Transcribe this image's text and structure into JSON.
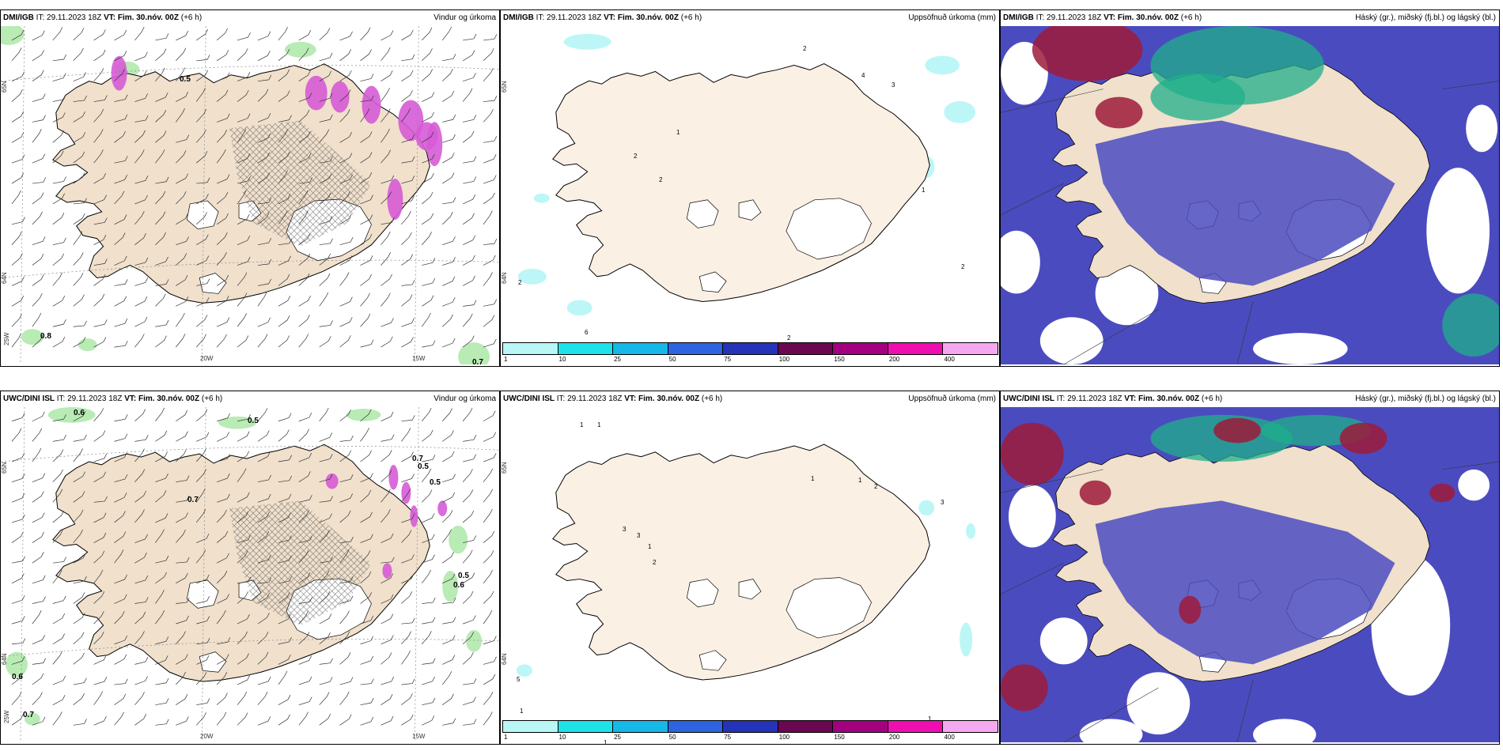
{
  "colors": {
    "land": "#f0e0cc",
    "land_light": "#fbf0e4",
    "cloud_high": "#9e1b3a",
    "cloud_mid": "#1faf8a",
    "cloud_low": "#4b4bc0",
    "precip_green": "#a8e6a3",
    "precip_purple": "#d65bd6"
  },
  "panels": [
    {
      "source": "DMI/IGB",
      "it_label": "IT:",
      "it": "29.11.2023 18Z",
      "vt_label": "VT:",
      "vt": "Fim. 30.nóv. 00Z",
      "lead": "(+6 h)",
      "title": "Vindur og úrkoma",
      "lat_labels": [
        "65N",
        "64N"
      ],
      "lon_labels": [
        "25W",
        "20W",
        "15W"
      ],
      "point_labels": [
        "0.5",
        "0.8",
        "0.7"
      ]
    },
    {
      "source": "DMI/IGB",
      "it_label": "IT:",
      "it": "29.11.2023 18Z",
      "vt_label": "VT:",
      "vt": "Fim. 30.nóv. 00Z",
      "lead": "(+6 h)",
      "title": "Uppsöfnuð úrkoma (mm)",
      "lat_labels": [
        "65N",
        "64N"
      ],
      "point_labels": [
        "2",
        "4",
        "3",
        "1",
        "2",
        "2",
        "1",
        "2",
        "2",
        "6",
        "2"
      ]
    },
    {
      "source": "DMI/IGB",
      "it_label": "IT:",
      "it": "29.11.2023 18Z",
      "vt_label": "VT:",
      "vt": "Fim. 30.nóv. 00Z",
      "lead": "(+6 h)",
      "title": "Háský (gr.), miðský (fj.bl.) og lágský (bl.)"
    },
    {
      "source": "UWC/DINI ISL",
      "it_label": "IT:",
      "it": "29.11.2023 18Z",
      "vt_label": "VT:",
      "vt": "Fim. 30.nóv. 00Z",
      "lead": "(+6 h)",
      "title": "Vindur og úrkoma",
      "lat_labels": [
        "65N",
        "64N"
      ],
      "lon_labels": [
        "25W",
        "20W",
        "15W"
      ],
      "point_labels": [
        "0.6",
        "0.5",
        "0.7",
        "0.7",
        "0.5",
        "0.5",
        "0.5",
        "0.6",
        "0.6",
        "0.7"
      ]
    },
    {
      "source": "UWC/DINI ISL",
      "it_label": "IT:",
      "it": "29.11.2023 18Z",
      "vt_label": "VT:",
      "vt": "Fim. 30.nóv. 00Z",
      "lead": "(+6 h)",
      "title": "Uppsöfnuð úrkoma (mm)",
      "lat_labels": [
        "65N",
        "64N"
      ],
      "point_labels": [
        "1",
        "1",
        "1",
        "1",
        "2",
        "3",
        "3",
        "3",
        "1",
        "2",
        "5",
        "1",
        "1",
        "1"
      ]
    },
    {
      "source": "UWC/DINI ISL",
      "it_label": "IT:",
      "it": "29.11.2023 18Z",
      "vt_label": "VT:",
      "vt": "Fim. 30.nóv. 00Z",
      "lead": "(+6 h)",
      "title": "Háský (gr.), miðský (fj.bl.) og lágský (bl.)"
    }
  ],
  "colorbar": {
    "ticks": [
      "1",
      "10",
      "25",
      "50",
      "75",
      "100",
      "150",
      "200",
      "400"
    ],
    "colors": [
      "#b9f6f6",
      "#1de3e8",
      "#15b8e6",
      "#2f64e0",
      "#2433b8",
      "#6b0650",
      "#a3007f",
      "#ef0fb0",
      "#f5a8f0"
    ]
  }
}
